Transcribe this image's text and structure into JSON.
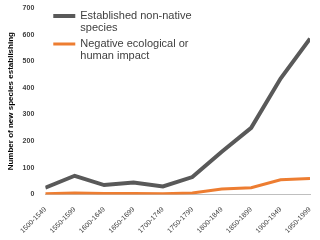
{
  "chart_data": {
    "type": "line",
    "y_label": "Number of new species establishing",
    "categories": [
      "1500-1549",
      "1550-1599",
      "1600-1649",
      "1650-1699",
      "1700-1749",
      "1750-1799",
      "1800-1849",
      "1850-1899",
      "1900-1949",
      "1950-1999"
    ],
    "series": [
      {
        "name": "Established non-native species",
        "color": "#595959",
        "values": [
          25,
          70,
          35,
          45,
          30,
          65,
          160,
          250,
          435,
          585
        ]
      },
      {
        "name": "Negative ecological or human impact",
        "color": "#ed7d31",
        "values": [
          2,
          5,
          3,
          3,
          2,
          5,
          20,
          25,
          55,
          60
        ]
      }
    ],
    "ylim": [
      0,
      700
    ],
    "yticks": [
      0,
      100,
      200,
      300,
      400,
      500,
      600,
      700
    ],
    "grid": false,
    "legend": "upper left"
  }
}
